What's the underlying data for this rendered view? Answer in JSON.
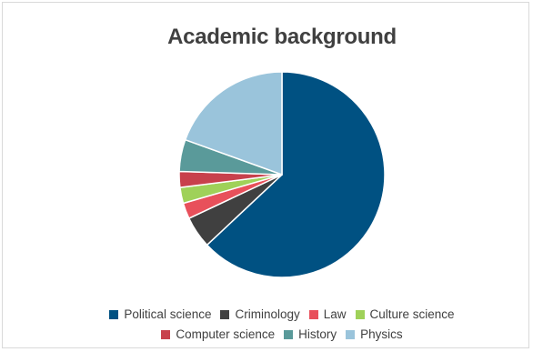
{
  "chart_data": {
    "type": "pie",
    "title": "Academic background",
    "categories": [
      "Political science",
      "Criminology",
      "Law",
      "Culture science",
      "Computer science",
      "History",
      "Physics"
    ],
    "values": [
      63,
      5,
      2.5,
      2.5,
      2.5,
      5,
      19.5
    ],
    "colors": [
      "#005182",
      "#404040",
      "#e8505b",
      "#9fd159",
      "#c8414c",
      "#5a9a9a",
      "#9ac4db"
    ],
    "start_angle_deg": 0,
    "direction": "clockwise",
    "legend": "bottom"
  }
}
